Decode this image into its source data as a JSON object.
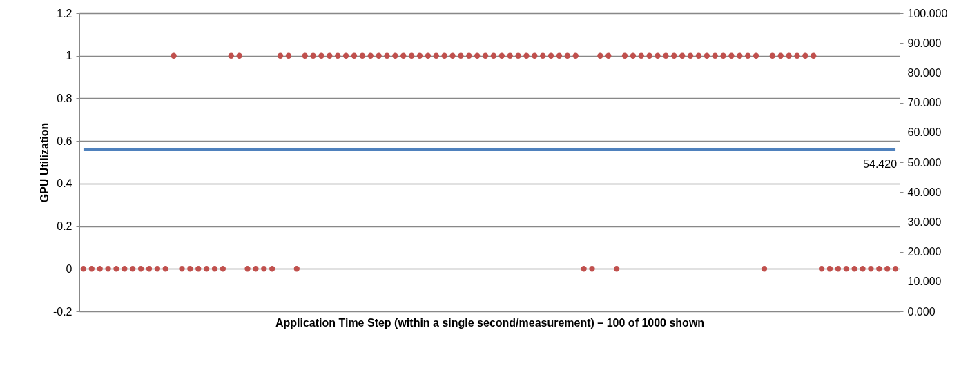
{
  "chart_data": {
    "type": "scatter",
    "xlabel": "Application Time Step (within a single second/measurement) – 100 of 1000 shown",
    "ylabel": "GPU Utilization",
    "categories": [
      null,
      null,
      null,
      null,
      null,
      null,
      null,
      null,
      null,
      null,
      null,
      null,
      null,
      null,
      null,
      null,
      null,
      null,
      null,
      null,
      null,
      null,
      null,
      null,
      null,
      null,
      null,
      null,
      null,
      null,
      null,
      null,
      null,
      null,
      null,
      null,
      null,
      null,
      null,
      null,
      null,
      null,
      null,
      null,
      null,
      null,
      null,
      null,
      null,
      null,
      null,
      null,
      null,
      null,
      null,
      null,
      null,
      null,
      null,
      null,
      null,
      null,
      null,
      null,
      null,
      null,
      null,
      null,
      null,
      null,
      null,
      null,
      null,
      null,
      null,
      null,
      null,
      null,
      null,
      null,
      null,
      null,
      null,
      null,
      null,
      null,
      null,
      null,
      null,
      null,
      null,
      null,
      null,
      null,
      null,
      null,
      null,
      null,
      null,
      null
    ],
    "series": [
      {
        "color": "#c0504d",
        "marker": "circle",
        "values": [
          0,
          0,
          0,
          0,
          0,
          0,
          0,
          0,
          0,
          0,
          0,
          1,
          0,
          0,
          0,
          0,
          0,
          0,
          1,
          1,
          0,
          0,
          0,
          0,
          1,
          1,
          0,
          1,
          1,
          1,
          1,
          1,
          1,
          1,
          1,
          1,
          1,
          1,
          1,
          1,
          1,
          1,
          1,
          1,
          1,
          1,
          1,
          1,
          1,
          1,
          1,
          1,
          1,
          1,
          1,
          1,
          1,
          1,
          1,
          1,
          1,
          0,
          0,
          1,
          1,
          0,
          1,
          1,
          1,
          1,
          1,
          1,
          1,
          1,
          1,
          1,
          1,
          1,
          1,
          1,
          1,
          1,
          1,
          0,
          1,
          1,
          1,
          1,
          1,
          1,
          0,
          0,
          0,
          0,
          0,
          0,
          0,
          0,
          0,
          0
        ]
      },
      {
        "type": "line",
        "axis": "y2",
        "color": "#4f81bd",
        "marker": "none",
        "values": [
          54.42,
          54.42,
          54.42,
          54.42,
          54.42,
          54.42,
          54.42,
          54.42,
          54.42,
          54.42,
          54.42,
          54.42,
          54.42,
          54.42,
          54.42,
          54.42,
          54.42,
          54.42,
          54.42,
          54.42,
          54.42,
          54.42,
          54.42,
          54.42,
          54.42,
          54.42,
          54.42,
          54.42,
          54.42,
          54.42,
          54.42,
          54.42,
          54.42,
          54.42,
          54.42,
          54.42,
          54.42,
          54.42,
          54.42,
          54.42,
          54.42,
          54.42,
          54.42,
          54.42,
          54.42,
          54.42,
          54.42,
          54.42,
          54.42,
          54.42,
          54.42,
          54.42,
          54.42,
          54.42,
          54.42,
          54.42,
          54.42,
          54.42,
          54.42,
          54.42,
          54.42,
          54.42,
          54.42,
          54.42,
          54.42,
          54.42,
          54.42,
          54.42,
          54.42,
          54.42,
          54.42,
          54.42,
          54.42,
          54.42,
          54.42,
          54.42,
          54.42,
          54.42,
          54.42,
          54.42,
          54.42,
          54.42,
          54.42,
          54.42,
          54.42,
          54.42,
          54.42,
          54.42,
          54.42,
          54.42,
          54.42,
          54.42,
          54.42,
          54.42,
          54.42,
          54.42,
          54.42,
          54.42,
          54.42,
          54.42
        ],
        "value_labels": [
          null,
          null,
          null,
          null,
          null,
          null,
          null,
          null,
          null,
          null,
          null,
          null,
          null,
          null,
          null,
          null,
          null,
          null,
          null,
          null,
          null,
          null,
          null,
          null,
          null,
          null,
          null,
          null,
          null,
          null,
          null,
          null,
          null,
          null,
          null,
          null,
          null,
          null,
          null,
          null,
          null,
          null,
          null,
          null,
          null,
          null,
          null,
          null,
          null,
          null,
          null,
          null,
          null,
          null,
          null,
          null,
          null,
          null,
          null,
          null,
          null,
          null,
          null,
          null,
          null,
          null,
          null,
          null,
          null,
          null,
          null,
          null,
          null,
          null,
          null,
          null,
          null,
          null,
          null,
          null,
          null,
          null,
          null,
          null,
          null,
          null,
          null,
          null,
          null,
          null,
          null,
          null,
          null,
          null,
          null,
          null,
          null,
          null,
          null,
          "54.420"
        ]
      }
    ],
    "ylim": [
      -0.2,
      1.2
    ],
    "yticks": [
      -0.2,
      0,
      0.2,
      0.4,
      0.6,
      0.8,
      1,
      1.2
    ],
    "y2lim": [
      0,
      100
    ],
    "y2ticks": [
      {
        "value": 0,
        "label": "0.000"
      },
      {
        "value": 10,
        "label": "10.000"
      },
      {
        "value": 20,
        "label": "20.000"
      },
      {
        "value": 30,
        "label": "30.000"
      },
      {
        "value": 40,
        "label": "40.000"
      },
      {
        "value": 50,
        "label": "50.000"
      },
      {
        "value": 60,
        "label": "60.000"
      },
      {
        "value": 70,
        "label": "70.000"
      },
      {
        "value": 80,
        "label": "80.000"
      },
      {
        "value": 90,
        "label": "90.000"
      },
      {
        "value": 100,
        "label": "100.000"
      }
    ],
    "grid": "y"
  }
}
